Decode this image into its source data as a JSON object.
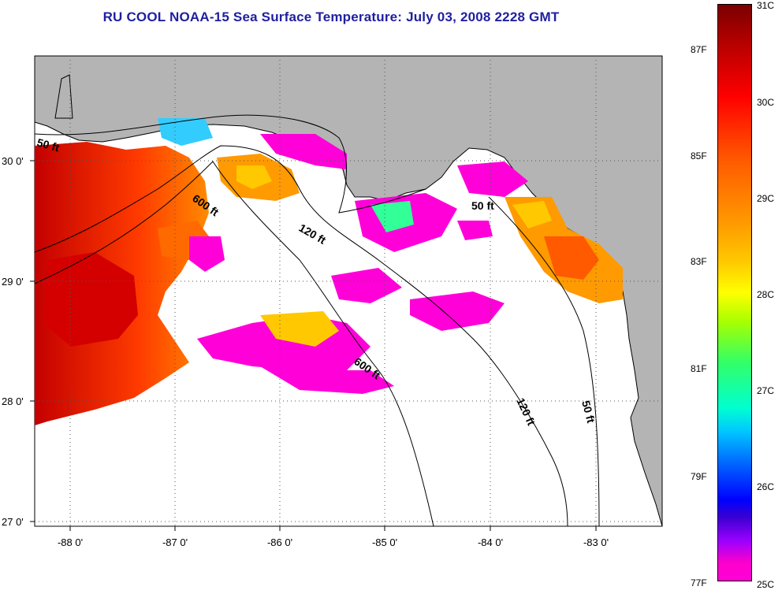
{
  "title": "RU COOL  NOAA-15  Sea Surface Temperature:  July 03, 2008 2228 GMT",
  "map": {
    "lon_ticks": [
      "-88 0'",
      "-87 0'",
      "-86 0'",
      "-85 0'",
      "-84 0'",
      "-83 0'"
    ],
    "lat_ticks": [
      "30 0'",
      "29 0'",
      "28 0'",
      "27 0'"
    ],
    "contour_labels": [
      "50 ft",
      "600 ft",
      "120 ft",
      "600 ft",
      "50 ft",
      "120 ft",
      "50 ft"
    ],
    "land_color": "#b4b4b4",
    "water_color": "#ffffff",
    "grid": "dotted"
  },
  "colorbar": {
    "fahrenheit": [
      "87F",
      "85F",
      "83F",
      "81F",
      "79F",
      "77F"
    ],
    "celsius": [
      "31C",
      "30C",
      "29C",
      "28C",
      "27C",
      "26C",
      "25C"
    ]
  }
}
